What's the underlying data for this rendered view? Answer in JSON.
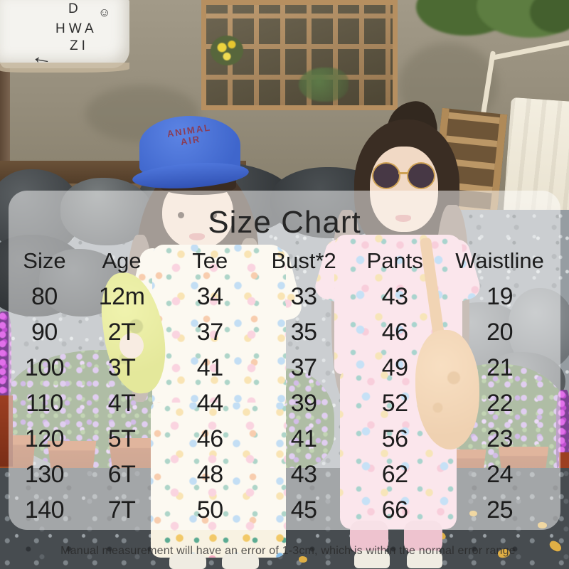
{
  "photo": {
    "whiteboard": {
      "line1": "D",
      "smiley": "☺",
      "line2": "HWA",
      "line3": "ZI",
      "arrow": "←"
    },
    "cap": {
      "line1": "ANIMAL",
      "line2": "AIR"
    }
  },
  "size_chart": {
    "title": "Size Chart",
    "columns": [
      "Size",
      "Age",
      "Tee",
      "Bust*2",
      "Pants",
      "Waistline"
    ],
    "rows": [
      [
        "80",
        "12m",
        "34",
        "33",
        "43",
        "19"
      ],
      [
        "90",
        "2T",
        "37",
        "35",
        "46",
        "20"
      ],
      [
        "100",
        "3T",
        "41",
        "37",
        "49",
        "21"
      ],
      [
        "110",
        "4T",
        "44",
        "39",
        "52",
        "22"
      ],
      [
        "120",
        "5T",
        "46",
        "41",
        "56",
        "23"
      ],
      [
        "130",
        "6T",
        "48",
        "43",
        "62",
        "24"
      ],
      [
        "140",
        "7T",
        "50",
        "45",
        "66",
        "25"
      ]
    ]
  },
  "footnote": "Manual measurement will have an error of 1-3cm, which is within the normal error range",
  "chart_data": {
    "type": "table",
    "title": "Size Chart",
    "columns": [
      "Size",
      "Age",
      "Tee",
      "Bust*2",
      "Pants",
      "Waistline"
    ],
    "rows": [
      [
        "80",
        "12m",
        "34",
        "33",
        "43",
        "19"
      ],
      [
        "90",
        "2T",
        "37",
        "35",
        "46",
        "20"
      ],
      [
        "100",
        "3T",
        "41",
        "37",
        "49",
        "21"
      ],
      [
        "110",
        "4T",
        "44",
        "39",
        "52",
        "22"
      ],
      [
        "120",
        "5T",
        "46",
        "41",
        "56",
        "23"
      ],
      [
        "130",
        "6T",
        "48",
        "43",
        "62",
        "24"
      ],
      [
        "140",
        "7T",
        "50",
        "45",
        "66",
        "25"
      ]
    ],
    "footnote": "Manual measurement will have an error of 1-3cm, which is within the normal error range",
    "layout": {
      "overlay": "semi-transparent white rounded rectangle over photo",
      "grid": false
    }
  },
  "colors": {
    "overlay": "rgba(255,255,255,0.5)",
    "text": "#1d1d1d",
    "cap_blue": "#4b74d8",
    "outfit_cream": "#f8f2e2",
    "outfit_pink": "#f7ccd8",
    "bag_green": "#d7dd49",
    "bag_tan": "#ecb476",
    "pot_terracotta": "#a8552c",
    "flower_purple": "#b48bd6"
  }
}
